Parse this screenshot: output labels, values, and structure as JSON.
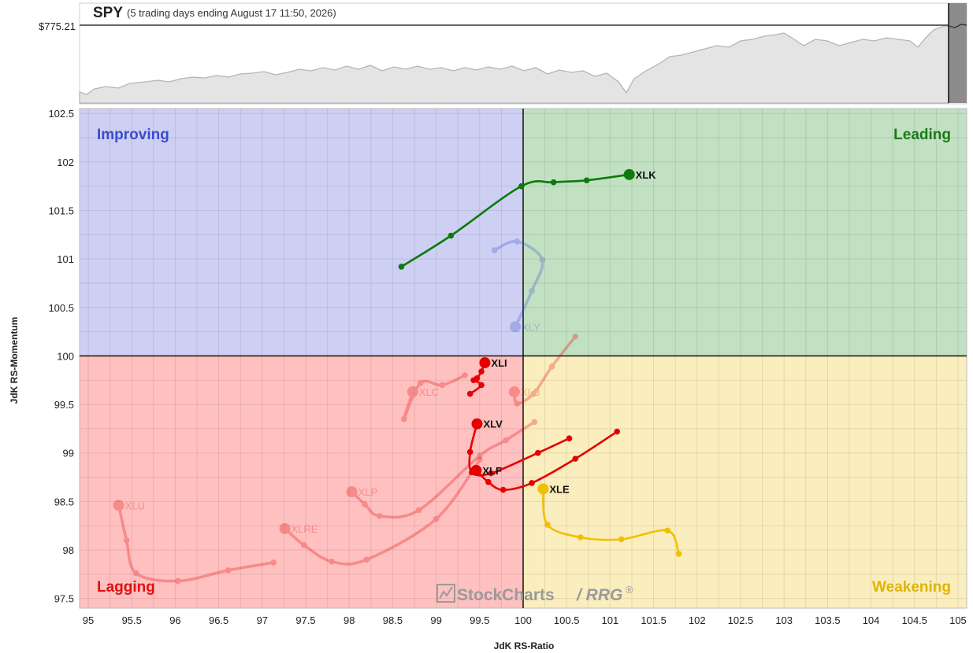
{
  "header": {
    "symbol": "SPY",
    "subtitle": "(5 trading days ending August 17 11:50, 2026)",
    "price_label": "$775.21"
  },
  "quadrants": {
    "improving": "Improving",
    "leading": "Leading",
    "lagging": "Lagging",
    "weakening": "Weakening"
  },
  "colors": {
    "improving_bg": "#cdd0f3",
    "leading_bg": "#c2e0c2",
    "lagging_bg": "#ffc0c0",
    "weakening_bg": "#fbeebe",
    "improving_text": "#3b4ccc",
    "leading_text": "#1a7a1a",
    "lagging_text": "#e01010",
    "weakening_text": "#e0b400",
    "leading_series": "#0c7a0c",
    "lagging_series": "#e60000",
    "weakening_series": "#f0c000"
  },
  "watermark": {
    "brand": "StockCharts",
    "product": "/ RRG",
    "mark": "®"
  },
  "chart_data": {
    "type": "scatter",
    "xlabel": "JdK RS-Ratio",
    "ylabel": "JdK RS-Momentum",
    "xlim": [
      94.9,
      105.1
    ],
    "ylim": [
      97.4,
      102.55
    ],
    "x_ticks": [
      "95",
      "95.5",
      "96",
      "96.5",
      "97",
      "97.5",
      "98",
      "98.5",
      "99",
      "99.5",
      "100",
      "100.5",
      "101",
      "101.5",
      "102",
      "102.5",
      "103",
      "103.5",
      "104",
      "104.5",
      "105"
    ],
    "y_ticks": [
      "97.5",
      "98",
      "98.5",
      "99",
      "99.5",
      "100",
      "100.5",
      "101",
      "101.5",
      "102",
      "102.5"
    ],
    "grid": true,
    "series": [
      {
        "name": "XLK",
        "style": "active",
        "color_key": "leading_series",
        "x": [
          98.6,
          99.17,
          99.98,
          100.35,
          100.73,
          101.22
        ],
        "y": [
          100.92,
          101.24,
          101.75,
          101.79,
          101.81,
          101.87
        ]
      },
      {
        "name": "XLI",
        "style": "active",
        "color_key": "lagging_series",
        "x": [
          99.39,
          99.52,
          99.43,
          99.47,
          99.52,
          99.56
        ],
        "y": [
          99.61,
          99.7,
          99.75,
          99.77,
          99.84,
          99.93
        ]
      },
      {
        "name": "XLV",
        "style": "active",
        "color_key": "lagging_series",
        "x": [
          100.53,
          100.17,
          99.63,
          99.41,
          99.39,
          99.47
        ],
        "y": [
          99.15,
          99.0,
          98.79,
          98.8,
          99.01,
          99.3
        ]
      },
      {
        "name": "XLF",
        "style": "active",
        "color_key": "lagging_series",
        "x": [
          101.08,
          100.6,
          100.1,
          99.77,
          99.6,
          99.46
        ],
        "y": [
          99.22,
          98.94,
          98.69,
          98.62,
          98.7,
          98.82
        ]
      },
      {
        "name": "XLE",
        "style": "active",
        "color_key": "weakening_series",
        "x": [
          101.79,
          101.66,
          101.13,
          100.66,
          100.28,
          100.23
        ],
        "y": [
          97.96,
          98.2,
          98.11,
          98.13,
          98.26,
          98.63
        ]
      },
      {
        "name": "XLY",
        "style": "faded",
        "color_key": "improving_text",
        "x": [
          99.67,
          99.93,
          100.22,
          100.1,
          99.91
        ],
        "y": [
          101.09,
          101.18,
          100.99,
          100.67,
          100.3
        ]
      },
      {
        "name": "XLC",
        "style": "faded",
        "color_key": "lagging_series",
        "x": [
          99.33,
          99.07,
          98.82,
          98.63,
          98.73
        ],
        "y": [
          99.8,
          99.7,
          99.72,
          99.35,
          99.63
        ]
      },
      {
        "name": "XLB",
        "style": "faded",
        "color_key": "lagging_series",
        "x": [
          100.6,
          100.33,
          100.12,
          99.93,
          99.9
        ],
        "y": [
          100.2,
          99.89,
          99.61,
          99.51,
          99.63
        ]
      },
      {
        "name": "XLP",
        "style": "faded",
        "color_key": "lagging_series",
        "x": [
          100.13,
          99.8,
          99.5,
          98.8,
          98.35,
          98.18,
          98.03
        ],
        "y": [
          99.32,
          99.13,
          98.97,
          98.41,
          98.35,
          98.47,
          98.6
        ]
      },
      {
        "name": "XLRE",
        "style": "faded",
        "color_key": "lagging_series",
        "x": [
          99.5,
          99.0,
          98.2,
          97.8,
          97.48,
          97.26
        ],
        "y": [
          98.93,
          98.32,
          97.9,
          97.88,
          98.05,
          98.22
        ]
      },
      {
        "name": "XLU",
        "style": "faded",
        "color_key": "lagging_series",
        "x": [
          97.13,
          96.61,
          96.03,
          95.55,
          95.44,
          95.35
        ],
        "y": [
          97.87,
          97.79,
          97.68,
          97.76,
          98.1,
          98.46
        ]
      }
    ]
  }
}
